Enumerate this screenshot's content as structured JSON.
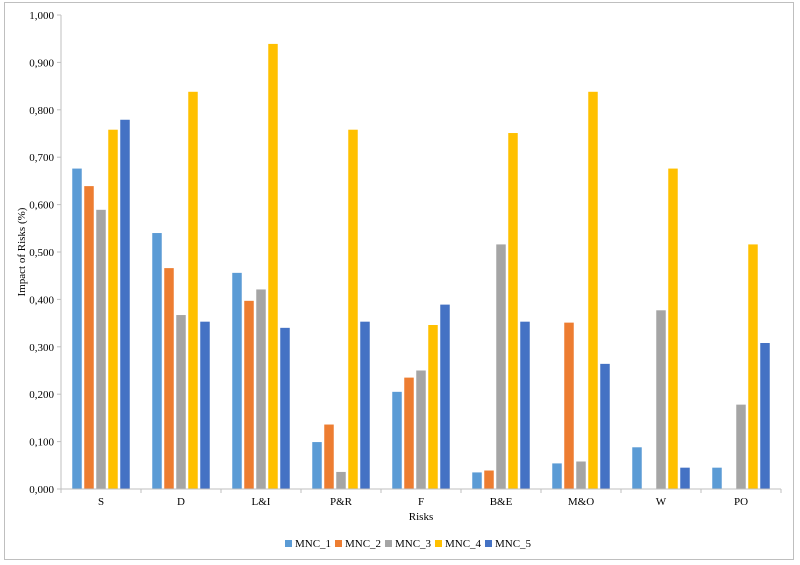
{
  "chart_data": {
    "type": "bar",
    "title": "",
    "xlabel": "Risks",
    "ylabel": "Impact of Risks (%)",
    "ylim": [
      0,
      1.0
    ],
    "yticks": [
      "0,000",
      "0,100",
      "0,200",
      "0,300",
      "0,400",
      "0,500",
      "0,600",
      "0,700",
      "0,800",
      "0,900",
      "1,000"
    ],
    "grid": false,
    "legend_position": "bottom",
    "categories": [
      "S",
      "D",
      "L&I",
      "P&R",
      "F",
      "B&E",
      "M&O",
      "W",
      "PO"
    ],
    "series": [
      {
        "name": "MNC_1",
        "color": "#5b9bd5",
        "values": [
          0.676,
          0.54,
          0.456,
          0.099,
          0.205,
          0.035,
          0.054,
          0.088,
          0.045
        ]
      },
      {
        "name": "MNC_2",
        "color": "#ed7d31",
        "values": [
          0.639,
          0.466,
          0.397,
          0.136,
          0.235,
          0.039,
          0.351,
          0.0,
          0.0
        ]
      },
      {
        "name": "MNC_3",
        "color": "#a5a5a5",
        "values": [
          0.589,
          0.367,
          0.421,
          0.036,
          0.25,
          0.516,
          0.058,
          0.377,
          0.178
        ]
      },
      {
        "name": "MNC_4",
        "color": "#ffc000",
        "values": [
          0.758,
          0.838,
          0.939,
          0.758,
          0.346,
          0.751,
          0.838,
          0.676,
          0.516
        ]
      },
      {
        "name": "MNC_5",
        "color": "#4472c4",
        "values": [
          0.779,
          0.353,
          0.34,
          0.353,
          0.389,
          0.353,
          0.264,
          0.045,
          0.308
        ]
      }
    ]
  }
}
